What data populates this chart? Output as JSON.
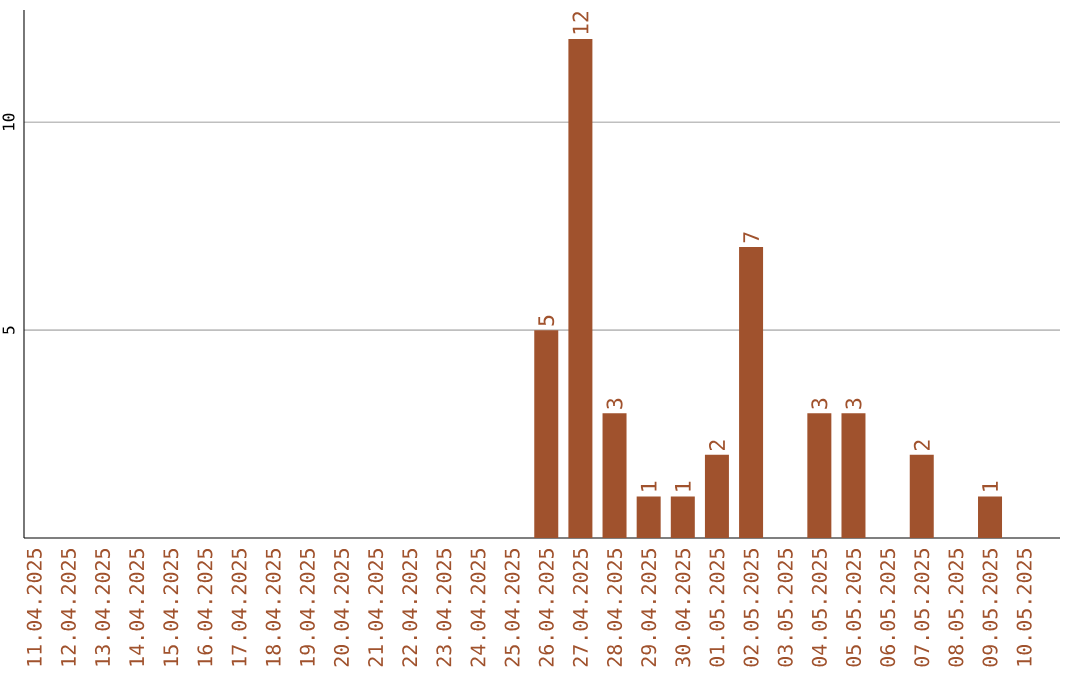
{
  "chart_data": {
    "type": "bar",
    "categories": [
      "11.04.2025",
      "12.04.2025",
      "13.04.2025",
      "14.04.2025",
      "15.04.2025",
      "16.04.2025",
      "17.04.2025",
      "18.04.2025",
      "19.04.2025",
      "20.04.2025",
      "21.04.2025",
      "22.04.2025",
      "23.04.2025",
      "24.04.2025",
      "25.04.2025",
      "26.04.2025",
      "27.04.2025",
      "28.04.2025",
      "29.04.2025",
      "30.04.2025",
      "01.05.2025",
      "02.05.2025",
      "03.05.2025",
      "04.05.2025",
      "05.05.2025",
      "06.05.2025",
      "07.05.2025",
      "08.05.2025",
      "09.05.2025",
      "10.05.2025"
    ],
    "values": [
      0,
      0,
      0,
      0,
      0,
      0,
      0,
      0,
      0,
      0,
      0,
      0,
      0,
      0,
      0,
      5,
      12,
      3,
      1,
      1,
      2,
      7,
      0,
      3,
      3,
      0,
      2,
      0,
      1,
      0
    ],
    "value_labels": [
      null,
      null,
      null,
      null,
      null,
      null,
      null,
      null,
      null,
      null,
      null,
      null,
      null,
      null,
      null,
      "5",
      "12",
      "3",
      "1",
      "1",
      "2",
      "7",
      null,
      "3",
      "3",
      null,
      "2",
      null,
      "1",
      null
    ],
    "color": "#a0522d",
    "ylim": [
      0,
      12.7
    ],
    "yticks": [
      5,
      10
    ],
    "grid": "y"
  }
}
